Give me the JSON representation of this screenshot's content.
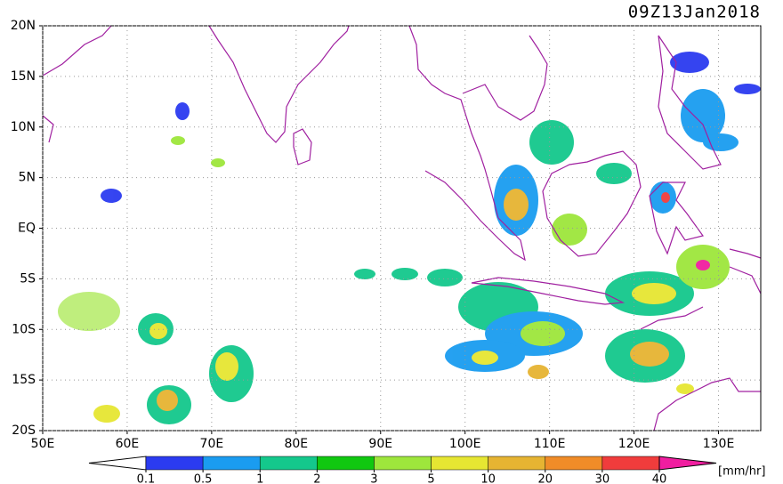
{
  "map": {
    "title": "09Z13Jan2018",
    "lonlim": [
      50,
      135
    ],
    "latlim": [
      -20,
      20
    ],
    "lon_ticks": [
      {
        "value": 50,
        "label": "50E"
      },
      {
        "value": 60,
        "label": "60E"
      },
      {
        "value": 70,
        "label": "70E"
      },
      {
        "value": 80,
        "label": "80E"
      },
      {
        "value": 90,
        "label": "90E"
      },
      {
        "value": 100,
        "label": "100E"
      },
      {
        "value": 110,
        "label": "110E"
      },
      {
        "value": 120,
        "label": "120E"
      },
      {
        "value": 130,
        "label": "130E"
      }
    ],
    "lat_ticks": [
      {
        "value": 20,
        "label": "20N"
      },
      {
        "value": 15,
        "label": "15N"
      },
      {
        "value": 10,
        "label": "10N"
      },
      {
        "value": 5,
        "label": "5N"
      },
      {
        "value": 0,
        "label": "EQ"
      },
      {
        "value": -5,
        "label": "5S"
      },
      {
        "value": -10,
        "label": "10S"
      },
      {
        "value": -15,
        "label": "15S"
      },
      {
        "value": -20,
        "label": "20S"
      }
    ],
    "colorbar": {
      "ticks": [
        0.1,
        0.5,
        1,
        2,
        3,
        5,
        10,
        20,
        30,
        40
      ],
      "colors": [
        "#ffffff",
        "#2b3bf0",
        "#1a9cf0",
        "#14c88c",
        "#10c810",
        "#9ee63c",
        "#e6e632",
        "#e6b432",
        "#f08c28",
        "#f03c3c",
        "#f01ea0"
      ],
      "unit": "[mm/hr]"
    }
  }
}
